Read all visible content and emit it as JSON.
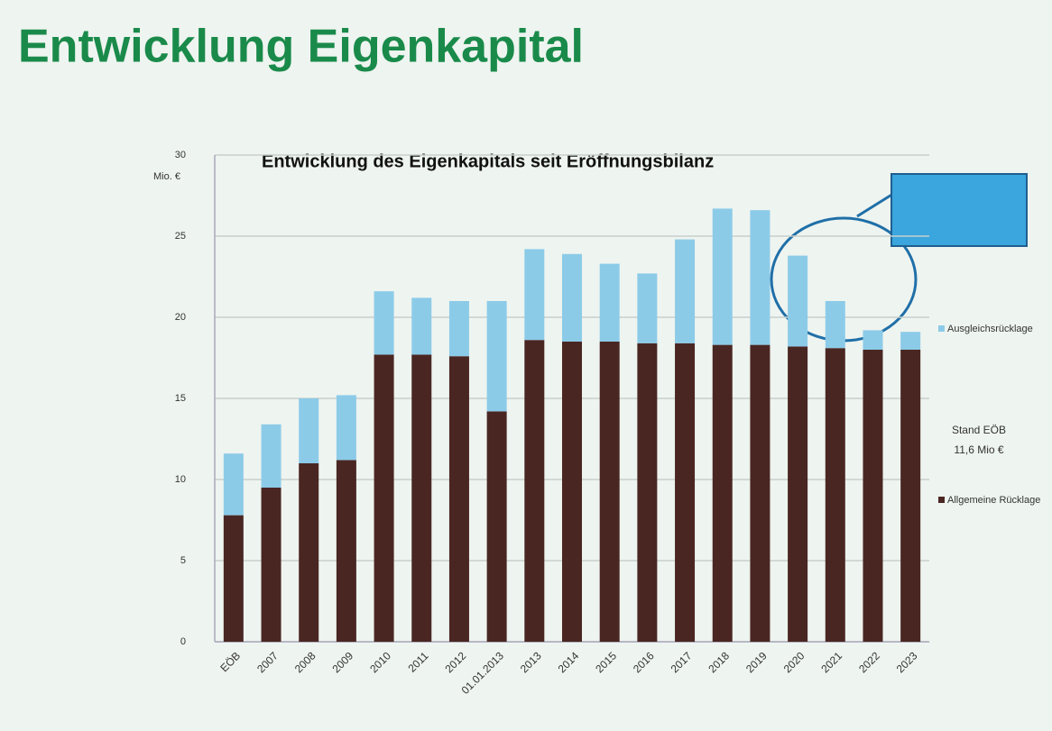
{
  "slide_title": "Entwicklung Eigenkapital",
  "chart_data": {
    "type": "stacked-bar",
    "title": "Entwicklung des Eigenkapitals seit Eröffnungsbilanz",
    "y_label": "Mio. €",
    "categories": [
      "EÖB",
      "2007",
      "2008",
      "2009",
      "2010",
      "2011",
      "2012",
      "01.01.2013",
      "2013",
      "2014",
      "2015",
      "2016",
      "2017",
      "2018",
      "2019",
      "2020",
      "2021",
      "2022",
      "2023"
    ],
    "series": [
      {
        "name": "Allgemeine Rücklage",
        "color": "#4a2622",
        "values": [
          7.8,
          9.5,
          11.0,
          11.2,
          17.7,
          17.7,
          17.6,
          14.2,
          18.6,
          18.5,
          18.5,
          18.4,
          18.4,
          18.3,
          18.3,
          18.2,
          18.1,
          18.0,
          18.0
        ]
      },
      {
        "name": "Ausgleichsrücklage",
        "color": "#8ccbe8",
        "values": [
          3.8,
          3.9,
          4.0,
          4.0,
          3.9,
          3.5,
          3.4,
          6.8,
          5.6,
          5.4,
          4.8,
          4.3,
          6.4,
          8.4,
          8.3,
          5.6,
          2.9,
          1.2,
          1.1
        ]
      }
    ],
    "annotations": [
      "Stand EÖB",
      "11,6 Mio €"
    ],
    "ylim": [
      0,
      30
    ],
    "yticks": [
      0,
      5,
      10,
      15,
      20,
      25,
      30
    ],
    "grid": true
  }
}
